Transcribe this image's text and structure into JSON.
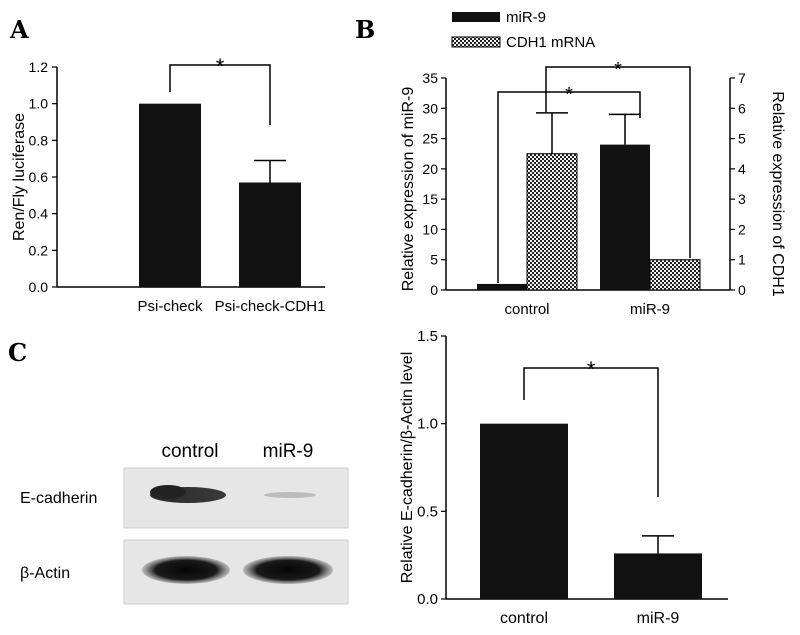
{
  "panels": {
    "a": "A",
    "b": "B",
    "c": "C"
  },
  "colors": {
    "bar": "#111111",
    "axis": "#000000"
  },
  "chart_data": [
    {
      "type": "bar",
      "categories": [
        "Psi-check",
        "Psi-check-CDH1"
      ],
      "values": [
        1.0,
        0.57
      ],
      "errors": [
        0,
        0.12
      ],
      "ylabel": "Ren/Fly luciferase",
      "ylim": [
        0,
        1.2
      ],
      "yticks": [
        "0.0",
        "0.2",
        "0.4",
        "0.6",
        "0.8",
        "1.0",
        "1.2"
      ],
      "significance": [
        "*"
      ]
    },
    {
      "type": "bar",
      "categories": [
        "control",
        "miR-9"
      ],
      "series": [
        {
          "name": "miR-9",
          "values": [
            1.0,
            24.0
          ],
          "errors": [
            0,
            5.0
          ],
          "axis": "left"
        },
        {
          "name": "CDH1 mRNA",
          "values": [
            4.5,
            1.0
          ],
          "errors": [
            1.35,
            0
          ],
          "axis": "right"
        }
      ],
      "ylabel": "Relative expression of miR-9",
      "ylabel_right": "Relative expression of CDH1",
      "ylim": [
        0,
        35
      ],
      "ylim_right": [
        0,
        7
      ],
      "yticks": [
        "0",
        "5",
        "10",
        "15",
        "20",
        "25",
        "30",
        "35"
      ],
      "yticks_right": [
        "0",
        "1",
        "2",
        "3",
        "4",
        "5",
        "6",
        "7"
      ],
      "legend_position": "top-left",
      "significance": [
        "*",
        "*"
      ]
    },
    {
      "type": "bar",
      "categories": [
        "control",
        "miR-9"
      ],
      "values": [
        1.0,
        0.26
      ],
      "errors": [
        0,
        0.1
      ],
      "ylabel": "Relative E-cadherin/β-Actin  level",
      "ylim": [
        0,
        1.5
      ],
      "yticks": [
        "0.0",
        "0.5",
        "1.0",
        "1.5"
      ],
      "significance": [
        "*"
      ]
    }
  ],
  "blot": {
    "lanes": [
      "control",
      "miR-9"
    ],
    "rows": [
      "E-cadherin",
      "β-Actin"
    ]
  }
}
